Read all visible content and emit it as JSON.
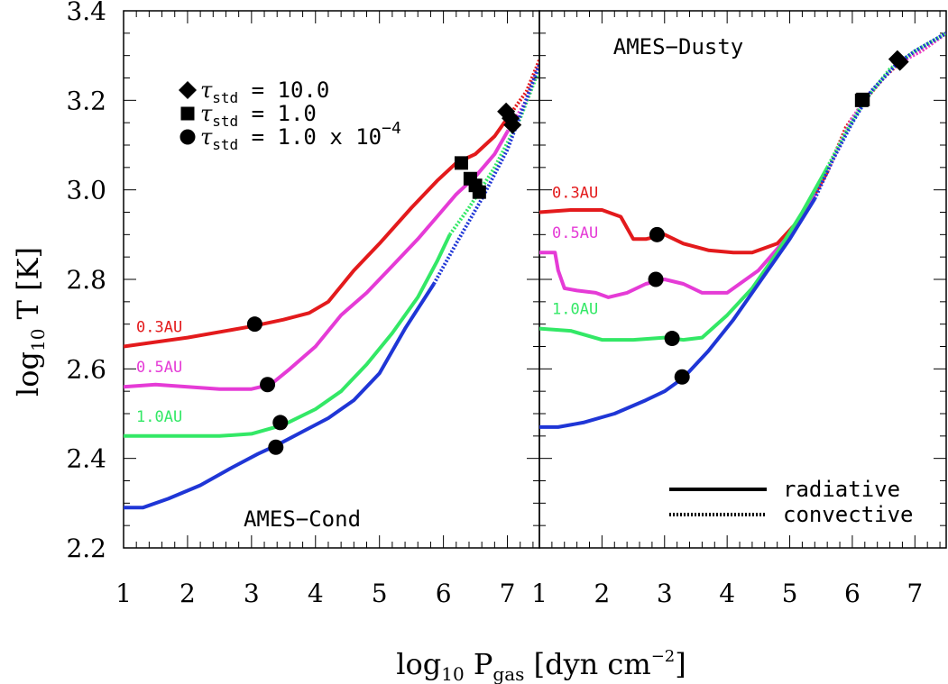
{
  "chart_data": {
    "type": "line",
    "xlabel": {
      "base": "log",
      "sub": "10",
      "mid": " P",
      "sub2": "gas",
      "tail": " [dyn cm",
      "sup": "−2",
      "end": "]"
    },
    "ylabel": {
      "base": "log",
      "sub": "10",
      "tail": " T [K]"
    },
    "xlim": [
      1,
      7.5
    ],
    "ylim": [
      2.2,
      3.4
    ],
    "x_ticks": [
      "1",
      "2",
      "3",
      "4",
      "5",
      "6",
      "7"
    ],
    "y_ticks": [
      "2.2",
      "2.4",
      "2.6",
      "2.8",
      "3.0",
      "3.2",
      "3.4"
    ],
    "marker_legend": [
      {
        "marker": "diamond",
        "symbol": "τ",
        "sub": "std",
        "text": " = 10.0"
      },
      {
        "marker": "square",
        "symbol": "τ",
        "sub": "std",
        "text": " = 1.0"
      },
      {
        "marker": "circle",
        "symbol": "τ",
        "sub": "std",
        "text": " = 1.0 x 10",
        "sup": "−4"
      }
    ],
    "line_legend": [
      {
        "style": "solid",
        "label": "radiative"
      },
      {
        "style": "dotted",
        "label": "convective"
      }
    ],
    "panels": [
      {
        "title": "AMES−Cond",
        "series": [
          {
            "name": "0.3AU",
            "color": "#e31a1c",
            "show_label": true,
            "x": [
              1,
              2,
              3,
              3.5,
              3.9,
              4.2,
              4.6,
              5.0,
              5.5,
              5.9,
              6.2,
              6.5,
              6.8,
              7.0,
              7.3,
              7.5
            ],
            "y": [
              2.65,
              2.67,
              2.695,
              2.71,
              2.725,
              2.75,
              2.82,
              2.88,
              2.96,
              3.02,
              3.06,
              3.08,
              3.12,
              3.16,
              3.22,
              3.29
            ],
            "convective_from": 7.05
          },
          {
            "name": "0.5AU",
            "color": "#e53bd6",
            "show_label": true,
            "x": [
              1,
              1.5,
              2,
              2.5,
              3,
              3.3,
              3.6,
              4.0,
              4.4,
              4.8,
              5.2,
              5.6,
              5.9,
              6.2,
              6.5,
              6.8,
              7.0,
              7.3,
              7.5
            ],
            "y": [
              2.56,
              2.565,
              2.56,
              2.555,
              2.555,
              2.565,
              2.6,
              2.65,
              2.72,
              2.77,
              2.83,
              2.89,
              2.94,
              2.99,
              3.03,
              3.08,
              3.13,
              3.2,
              3.28
            ],
            "convective_from": 7.0
          },
          {
            "name": "1.0AU",
            "color": "#33e866",
            "show_label": true,
            "x": [
              1,
              1.5,
              2,
              2.5,
              3,
              3.5,
              4.0,
              4.4,
              4.8,
              5.2,
              5.6,
              5.9,
              6.1,
              6.4,
              6.8,
              7.2,
              7.5
            ],
            "y": [
              2.45,
              2.45,
              2.45,
              2.45,
              2.455,
              2.475,
              2.51,
              2.55,
              2.61,
              2.68,
              2.76,
              2.84,
              2.9,
              2.96,
              3.05,
              3.16,
              3.27
            ],
            "convective_from": 6.1
          },
          {
            "name": "",
            "color": "#1f36d6",
            "show_label": false,
            "x": [
              1,
              1.3,
              1.7,
              2.2,
              2.7,
              3.1,
              3.4,
              3.8,
              4.2,
              4.6,
              5.0,
              5.4,
              5.85,
              6.2,
              6.6,
              7.0,
              7.5
            ],
            "y": [
              2.29,
              2.29,
              2.31,
              2.34,
              2.38,
              2.41,
              2.43,
              2.46,
              2.49,
              2.53,
              2.59,
              2.69,
              2.79,
              2.88,
              2.98,
              3.09,
              3.28
            ],
            "convective_from": 5.85
          }
        ],
        "markers": [
          {
            "marker": "circle",
            "x": 3.05,
            "y": 2.7
          },
          {
            "marker": "circle",
            "x": 3.25,
            "y": 2.565
          },
          {
            "marker": "circle",
            "x": 3.45,
            "y": 2.48
          },
          {
            "marker": "circle",
            "x": 3.38,
            "y": 2.425
          },
          {
            "marker": "square",
            "x": 6.28,
            "y": 3.06
          },
          {
            "marker": "square",
            "x": 6.42,
            "y": 3.025
          },
          {
            "marker": "square",
            "x": 6.5,
            "y": 3.01
          },
          {
            "marker": "square",
            "x": 6.56,
            "y": 2.995
          },
          {
            "marker": "diamond",
            "x": 6.98,
            "y": 3.175
          },
          {
            "marker": "diamond",
            "x": 7.05,
            "y": 3.16
          },
          {
            "marker": "diamond",
            "x": 7.08,
            "y": 3.145
          }
        ]
      },
      {
        "title": "AMES−Dusty",
        "series": [
          {
            "name": "0.3AU",
            "color": "#e31a1c",
            "show_label": true,
            "x": [
              1,
              1.5,
              2,
              2.3,
              2.5,
              2.7,
              3.0,
              3.3,
              3.7,
              4.1,
              4.4,
              4.8,
              5.2,
              5.6,
              5.9,
              6.2,
              6.5,
              6.8,
              7.1,
              7.5
            ],
            "y": [
              2.95,
              2.955,
              2.955,
              2.94,
              2.89,
              2.89,
              2.9,
              2.88,
              2.865,
              2.86,
              2.86,
              2.88,
              2.94,
              3.04,
              3.14,
              3.2,
              3.25,
              3.29,
              3.31,
              3.35
            ],
            "convective_from": 5.6
          },
          {
            "name": "0.5AU",
            "color": "#e53bd6",
            "show_label": true,
            "x": [
              1,
              1.25,
              1.3,
              1.4,
              1.6,
              1.9,
              2.1,
              2.4,
              2.7,
              3.0,
              3.3,
              3.6,
              4.0,
              4.5,
              5.0,
              5.4,
              5.7,
              6.0,
              6.3,
              6.7,
              7.1,
              7.5
            ],
            "y": [
              2.86,
              2.86,
              2.82,
              2.78,
              2.775,
              2.77,
              2.76,
              2.77,
              2.79,
              2.8,
              2.79,
              2.77,
              2.77,
              2.82,
              2.9,
              2.99,
              3.07,
              3.16,
              3.22,
              3.28,
              3.31,
              3.35
            ],
            "convective_from": 5.6
          },
          {
            "name": "1.0AU",
            "color": "#33e866",
            "show_label": true,
            "x": [
              1,
              1.5,
              2,
              2.5,
              3,
              3.3,
              3.6,
              4.0,
              4.4,
              4.8,
              5.2,
              5.6,
              5.9,
              6.2,
              6.6,
              7.0,
              7.5
            ],
            "y": [
              2.69,
              2.685,
              2.665,
              2.665,
              2.67,
              2.665,
              2.67,
              2.72,
              2.78,
              2.86,
              2.95,
              3.05,
              3.13,
              3.2,
              3.27,
              3.31,
              3.35
            ],
            "convective_from": 5.6
          },
          {
            "name": "",
            "color": "#1f36d6",
            "show_label": false,
            "x": [
              1,
              1.3,
              1.7,
              2.2,
              2.7,
              3.0,
              3.3,
              3.7,
              4.1,
              4.5,
              5.0,
              5.4,
              5.7,
              6.0,
              6.3,
              6.7,
              7.0,
              7.5
            ],
            "y": [
              2.47,
              2.47,
              2.48,
              2.5,
              2.53,
              2.55,
              2.58,
              2.64,
              2.71,
              2.79,
              2.89,
              2.98,
              3.07,
              3.15,
              3.22,
              3.28,
              3.31,
              3.35
            ],
            "convective_from": 5.6
          }
        ],
        "markers": [
          {
            "marker": "circle",
            "x": 2.88,
            "y": 2.9
          },
          {
            "marker": "circle",
            "x": 2.86,
            "y": 2.8
          },
          {
            "marker": "circle",
            "x": 3.12,
            "y": 2.668
          },
          {
            "marker": "circle",
            "x": 3.28,
            "y": 2.582
          },
          {
            "marker": "square",
            "x": 6.15,
            "y": 3.2
          },
          {
            "marker": "square",
            "x": 6.17,
            "y": 3.202
          },
          {
            "marker": "diamond",
            "x": 6.72,
            "y": 3.292
          },
          {
            "marker": "diamond",
            "x": 6.76,
            "y": 3.286
          }
        ]
      }
    ]
  }
}
